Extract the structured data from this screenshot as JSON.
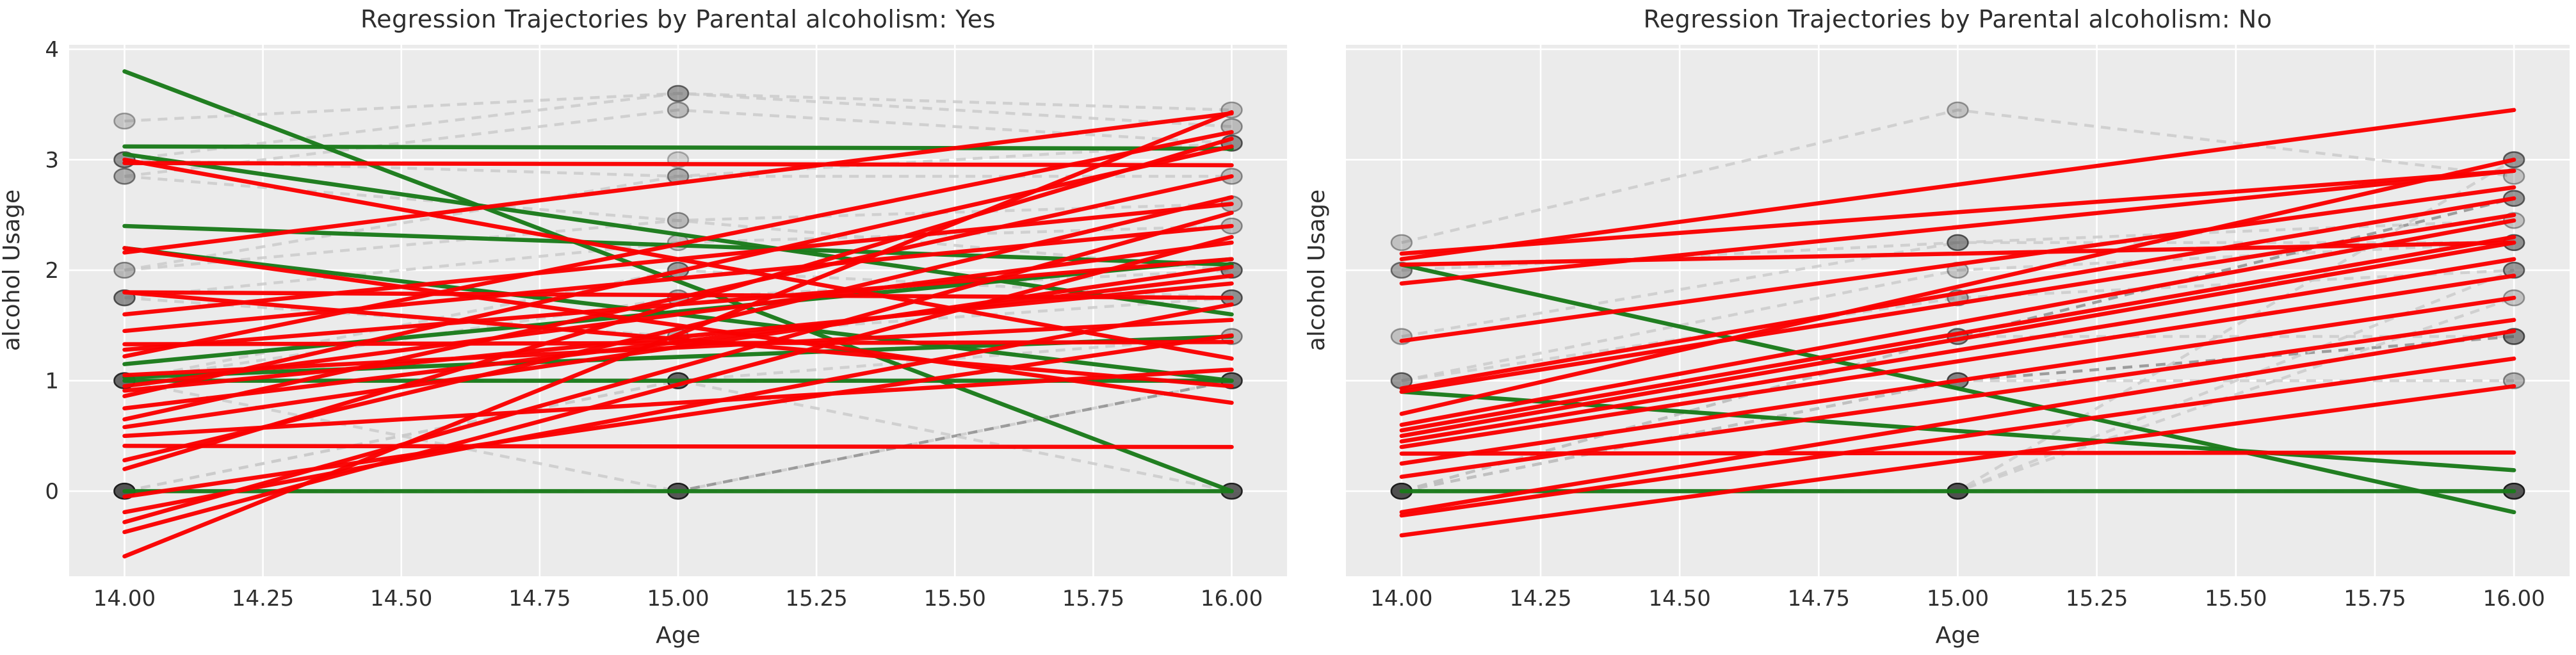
{
  "figure": {
    "background": "#ffffff",
    "axes_background": "#ebebeb",
    "gridline_color": "#ffffff",
    "tick_color": "#2e2e2e",
    "red": "#fa0000",
    "green": "#1a7a1a",
    "trajectory_gray": "#c9c9c9",
    "trajectory_dark_gray": "#8f8f8f",
    "marker_fill": "#4a4a4a",
    "marker_edge": "#1c1c1c"
  },
  "chart_data": [
    {
      "type": "line",
      "subtype": "spaghetti-regression",
      "title": "Regression Trajectories by Parental alcoholism: Yes",
      "xlabel": "Age",
      "ylabel": "alcohol Usage",
      "xlim": [
        13.9,
        16.1
      ],
      "ylim": [
        -0.77,
        4.04
      ],
      "grid": true,
      "legend": "none",
      "ages": [
        14,
        15,
        16
      ],
      "x_tick_values": [
        14.0,
        14.25,
        14.5,
        14.75,
        15.0,
        15.25,
        15.5,
        15.75,
        16.0
      ],
      "x_tick_labels": [
        "14.00",
        "14.25",
        "14.50",
        "14.75",
        "15.00",
        "15.25",
        "15.50",
        "15.75",
        "16.00"
      ],
      "y_tick_values": [
        0,
        1,
        2,
        3,
        4
      ],
      "y_tick_labels": [
        "0",
        "1",
        "2",
        "3",
        "4"
      ],
      "trajectories": [
        {
          "values": [
            3.35,
            3.6,
            3.3
          ],
          "dark": false
        },
        {
          "values": [
            3.0,
            3.6,
            3.45
          ],
          "dark": false
        },
        {
          "values": [
            2.85,
            3.45,
            3.15
          ],
          "dark": false
        },
        {
          "values": [
            3.0,
            2.85,
            3.15
          ],
          "dark": false
        },
        {
          "values": [
            2.85,
            2.45,
            2.6
          ],
          "dark": false
        },
        {
          "values": [
            2.0,
            2.85,
            2.85
          ],
          "dark": false
        },
        {
          "values": [
            1.75,
            2.25,
            2.4
          ],
          "dark": false
        },
        {
          "values": [
            1.75,
            1.4,
            1.75
          ],
          "dark": false
        },
        {
          "values": [
            1.0,
            2.0,
            1.75
          ],
          "dark": false
        },
        {
          "values": [
            1.0,
            1.75,
            2.0
          ],
          "dark": false
        },
        {
          "values": [
            1.0,
            1.0,
            1.4
          ],
          "dark": false
        },
        {
          "values": [
            1.0,
            0.0,
            1.0
          ],
          "dark": false
        },
        {
          "values": [
            0.0,
            1.0,
            1.0
          ],
          "dark": false
        },
        {
          "values": [
            0.0,
            0.0,
            1.0
          ],
          "dark": true
        },
        {
          "values": [
            0.0,
            1.0,
            0.0
          ],
          "dark": false
        },
        {
          "values": [
            2.0,
            2.45,
            2.0
          ],
          "dark": false
        },
        {
          "values": [
            0.0,
            0.0,
            0.0
          ],
          "dark": false
        },
        {
          "values": [
            0.0,
            0.0,
            0.0
          ],
          "dark": false
        }
      ],
      "regression_lines": [
        {
          "color": "green",
          "y14": 3.8,
          "y16": 0.0
        },
        {
          "color": "green",
          "y14": 3.12,
          "y16": 3.1
        },
        {
          "color": "green",
          "y14": 3.05,
          "y16": 1.6
        },
        {
          "color": "green",
          "y14": 2.4,
          "y16": 2.05
        },
        {
          "color": "green",
          "y14": 2.2,
          "y16": 1.0
        },
        {
          "color": "green",
          "y14": 1.15,
          "y16": 2.1
        },
        {
          "color": "green",
          "y14": 1.03,
          "y16": 1.4
        },
        {
          "color": "green",
          "y14": 1.0,
          "y16": 1.0
        },
        {
          "color": "green",
          "y14": 0.0,
          "y16": 0.0
        },
        {
          "color": "red",
          "y14": 2.97,
          "y16": 2.95
        },
        {
          "color": "red",
          "y14": 2.16,
          "y16": 3.42
        },
        {
          "color": "red",
          "y14": 3.0,
          "y16": 1.2
        },
        {
          "color": "red",
          "y14": 2.2,
          "y16": 0.8
        },
        {
          "color": "red",
          "y14": 1.8,
          "y16": 1.75
        },
        {
          "color": "red",
          "y14": 1.8,
          "y16": 0.95
        },
        {
          "color": "red",
          "y14": 1.6,
          "y16": 2.6
        },
        {
          "color": "red",
          "y14": 1.45,
          "y16": 2.4
        },
        {
          "color": "red",
          "y14": 1.33,
          "y16": 1.35
        },
        {
          "color": "red",
          "y14": 1.28,
          "y16": 2.1
        },
        {
          "color": "red",
          "y14": 1.22,
          "y16": 3.25
        },
        {
          "color": "red",
          "y14": 1.05,
          "y16": 1.55
        },
        {
          "color": "red",
          "y14": 0.95,
          "y16": 2.25
        },
        {
          "color": "red",
          "y14": 0.91,
          "y16": 1.88
        },
        {
          "color": "red",
          "y14": 0.86,
          "y16": 3.12
        },
        {
          "color": "red",
          "y14": 0.75,
          "y16": 1.95
        },
        {
          "color": "red",
          "y14": 0.65,
          "y16": 2.85
        },
        {
          "color": "red",
          "y14": 0.58,
          "y16": 2.03
        },
        {
          "color": "red",
          "y14": 0.5,
          "y16": 1.1
        },
        {
          "color": "red",
          "y14": 0.41,
          "y16": 0.4
        },
        {
          "color": "red",
          "y14": 0.28,
          "y16": 2.66
        },
        {
          "color": "red",
          "y14": 0.2,
          "y16": 3.19
        },
        {
          "color": "red",
          "y14": -0.05,
          "y16": 1.41
        },
        {
          "color": "red",
          "y14": -0.19,
          "y16": 1.69
        },
        {
          "color": "red",
          "y14": -0.28,
          "y16": 2.52
        },
        {
          "color": "red",
          "y14": -0.37,
          "y16": 2.3
        },
        {
          "color": "red",
          "y14": -0.59,
          "y16": 3.43
        }
      ],
      "points": {
        "age14": [
          [
            3.35,
            0.18
          ],
          [
            3.0,
            0.45
          ],
          [
            2.85,
            0.3
          ],
          [
            2.0,
            0.22
          ],
          [
            1.75,
            0.5
          ],
          [
            1.0,
            0.75
          ],
          [
            0.0,
            0.92
          ]
        ],
        "age15": [
          [
            3.6,
            0.4
          ],
          [
            3.45,
            0.25
          ],
          [
            3.0,
            0.2
          ],
          [
            2.85,
            0.3
          ],
          [
            2.45,
            0.2
          ],
          [
            2.25,
            0.2
          ],
          [
            2.0,
            0.45
          ],
          [
            1.75,
            0.3
          ],
          [
            1.4,
            0.3
          ],
          [
            1.0,
            0.8
          ],
          [
            0.0,
            0.9
          ]
        ],
        "age16": [
          [
            3.45,
            0.2
          ],
          [
            3.3,
            0.25
          ],
          [
            3.15,
            0.5
          ],
          [
            2.85,
            0.25
          ],
          [
            2.6,
            0.25
          ],
          [
            2.4,
            0.25
          ],
          [
            2.0,
            0.5
          ],
          [
            1.75,
            0.5
          ],
          [
            1.4,
            0.3
          ],
          [
            1.0,
            0.75
          ],
          [
            0.0,
            0.85
          ]
        ]
      }
    },
    {
      "type": "line",
      "subtype": "spaghetti-regression",
      "title": "Regression Trajectories by Parental alcoholism: No",
      "xlabel": "Age",
      "ylabel": "alcohol Usage",
      "xlim": [
        13.9,
        16.1
      ],
      "ylim": [
        -0.77,
        4.04
      ],
      "grid": true,
      "legend": "none",
      "ages": [
        14,
        15,
        16
      ],
      "x_tick_values": [
        14.0,
        14.25,
        14.5,
        14.75,
        15.0,
        15.25,
        15.5,
        15.75,
        16.0
      ],
      "x_tick_labels": [
        "14.00",
        "14.25",
        "14.50",
        "14.75",
        "15.00",
        "15.25",
        "15.50",
        "15.75",
        "16.00"
      ],
      "y_tick_values": [
        0,
        1,
        2,
        3,
        4
      ],
      "y_tick_labels": [],
      "trajectories": [
        {
          "values": [
            2.25,
            3.45,
            2.85
          ],
          "dark": false
        },
        {
          "values": [
            2.0,
            2.25,
            2.25
          ],
          "dark": false
        },
        {
          "values": [
            1.4,
            2.25,
            2.45
          ],
          "dark": false
        },
        {
          "values": [
            1.0,
            2.0,
            2.25
          ],
          "dark": false
        },
        {
          "values": [
            1.0,
            1.75,
            2.0
          ],
          "dark": false
        },
        {
          "values": [
            0.0,
            1.4,
            2.65
          ],
          "dark": true
        },
        {
          "values": [
            0.0,
            1.4,
            1.4
          ],
          "dark": false
        },
        {
          "values": [
            0.0,
            1.0,
            1.4
          ],
          "dark": true
        },
        {
          "values": [
            0.0,
            1.0,
            1.0
          ],
          "dark": false
        },
        {
          "values": [
            0.0,
            0.0,
            2.0
          ],
          "dark": false
        },
        {
          "values": [
            0.0,
            0.0,
            1.75
          ],
          "dark": false
        },
        {
          "values": [
            0.0,
            0.0,
            3.0
          ],
          "dark": false
        },
        {
          "values": [
            0.0,
            0.0,
            0.0
          ],
          "dark": false
        },
        {
          "values": [
            0.0,
            0.0,
            0.0
          ],
          "dark": false
        }
      ],
      "regression_lines": [
        {
          "color": "green",
          "y14": 2.05,
          "y16": -0.19
        },
        {
          "color": "green",
          "y14": 0.9,
          "y16": 0.19
        },
        {
          "color": "green",
          "y14": 0.0,
          "y16": 0.0
        },
        {
          "color": "red",
          "y14": 2.1,
          "y16": 3.45
        },
        {
          "color": "red",
          "y14": 2.15,
          "y16": 2.9
        },
        {
          "color": "red",
          "y14": 2.05,
          "y16": 2.25
        },
        {
          "color": "red",
          "y14": 1.88,
          "y16": 2.9
        },
        {
          "color": "red",
          "y14": 1.36,
          "y16": 2.75
        },
        {
          "color": "red",
          "y14": 0.93,
          "y16": 2.65
        },
        {
          "color": "red",
          "y14": 0.9,
          "y16": 2.5
        },
        {
          "color": "red",
          "y14": 0.7,
          "y16": 3.0
        },
        {
          "color": "red",
          "y14": 0.6,
          "y16": 2.45
        },
        {
          "color": "red",
          "y14": 0.55,
          "y16": 2.3
        },
        {
          "color": "red",
          "y14": 0.5,
          "y16": 2.25
        },
        {
          "color": "red",
          "y14": 0.45,
          "y16": 2.1
        },
        {
          "color": "red",
          "y14": 0.4,
          "y16": 1.95
        },
        {
          "color": "red",
          "y14": 0.34,
          "y16": 0.35
        },
        {
          "color": "red",
          "y14": 0.25,
          "y16": 1.75
        },
        {
          "color": "red",
          "y14": 0.13,
          "y16": 1.55
        },
        {
          "color": "red",
          "y14": -0.19,
          "y16": 1.45
        },
        {
          "color": "red",
          "y14": -0.22,
          "y16": 1.2
        },
        {
          "color": "red",
          "y14": -0.4,
          "y16": 0.95
        }
      ],
      "points": {
        "age14": [
          [
            2.25,
            0.2
          ],
          [
            2.0,
            0.4
          ],
          [
            1.4,
            0.2
          ],
          [
            1.0,
            0.45
          ],
          [
            0.0,
            0.95
          ]
        ],
        "age15": [
          [
            3.45,
            0.2
          ],
          [
            2.25,
            0.5
          ],
          [
            2.0,
            0.2
          ],
          [
            1.75,
            0.3
          ],
          [
            1.4,
            0.45
          ],
          [
            1.0,
            0.6
          ],
          [
            0.0,
            0.95
          ]
        ],
        "age16": [
          [
            3.0,
            0.5
          ],
          [
            2.85,
            0.2
          ],
          [
            2.65,
            0.5
          ],
          [
            2.45,
            0.2
          ],
          [
            2.25,
            0.5
          ],
          [
            2.0,
            0.45
          ],
          [
            1.75,
            0.2
          ],
          [
            1.4,
            0.55
          ],
          [
            1.0,
            0.3
          ],
          [
            0.0,
            0.9
          ]
        ]
      }
    }
  ]
}
